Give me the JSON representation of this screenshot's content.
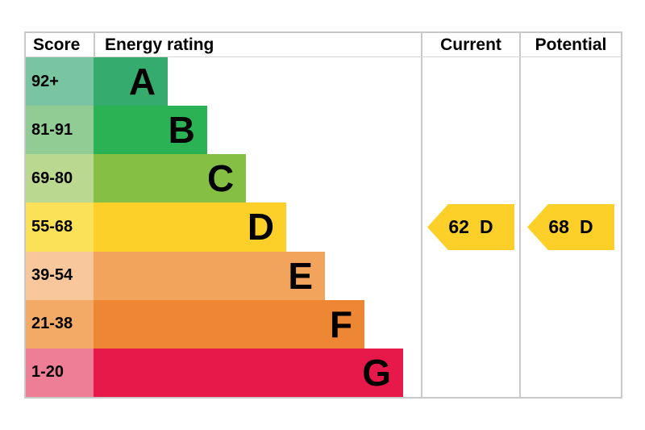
{
  "table": {
    "headers": {
      "score": "Score",
      "energy": "Energy rating",
      "current": "Current",
      "potential": "Potential"
    },
    "border_color": "#c9c9c9"
  },
  "chart_data": {
    "type": "bar",
    "title": "Energy rating",
    "orientation": "horizontal",
    "categories": [
      "A",
      "B",
      "C",
      "D",
      "E",
      "F",
      "G"
    ],
    "bands": [
      {
        "score_range": "92+",
        "letter": "A",
        "bar_color": "#35ab6d",
        "score_cell_color": "#79c5a1",
        "bar_width_pct": 22.7
      },
      {
        "score_range": "81-91",
        "letter": "B",
        "bar_color": "#2ab255",
        "score_cell_color": "#90cc93",
        "bar_width_pct": 34.7
      },
      {
        "score_range": "69-80",
        "letter": "C",
        "bar_color": "#85c044",
        "score_cell_color": "#bad88f",
        "bar_width_pct": 46.6
      },
      {
        "score_range": "55-68",
        "letter": "D",
        "bar_color": "#fcd029",
        "score_cell_color": "#fbe158",
        "bar_width_pct": 58.9
      },
      {
        "score_range": "39-54",
        "letter": "E",
        "bar_color": "#f3a45c",
        "score_cell_color": "#f8c89c",
        "bar_width_pct": 70.7
      },
      {
        "score_range": "21-38",
        "letter": "F",
        "bar_color": "#ee8733",
        "score_cell_color": "#f3aa67",
        "bar_width_pct": 82.8
      },
      {
        "score_range": "1-20",
        "letter": "G",
        "bar_color": "#e7194b",
        "score_cell_color": "#ee7e95",
        "bar_width_pct": 94.6
      }
    ],
    "current": {
      "value": "62",
      "band": "D",
      "arrow_color": "#fcd029"
    },
    "potential": {
      "value": "68",
      "band": "D",
      "arrow_color": "#fcd029"
    }
  }
}
